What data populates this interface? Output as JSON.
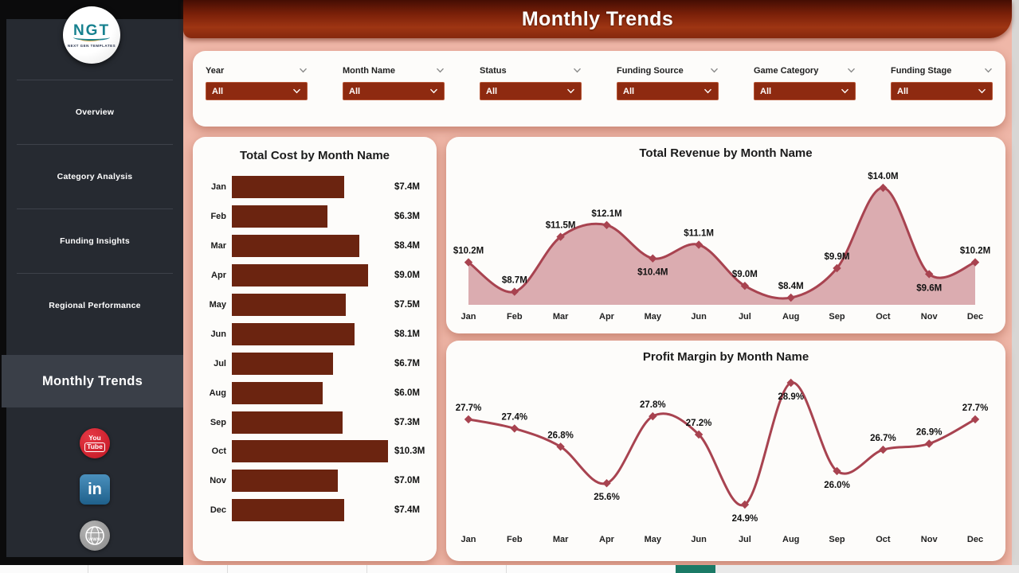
{
  "app": {
    "title": "Monthly Trends"
  },
  "sidebar": {
    "logo": {
      "text": "NGT",
      "subtext": "NEXT GEN TEMPLATES"
    },
    "items": [
      {
        "label": "Overview",
        "active": false
      },
      {
        "label": "Category Analysis",
        "active": false
      },
      {
        "label": "Funding Insights",
        "active": false
      },
      {
        "label": "Regional Performance",
        "active": false
      },
      {
        "label": "Monthly Trends",
        "active": true
      }
    ],
    "social": [
      "YouTube",
      "LinkedIn",
      "Website"
    ],
    "youtube_label_top": "You",
    "youtube_label_bottom": "Tube",
    "linkedin_label": "in",
    "website_label": "WWW"
  },
  "filters": [
    {
      "label": "Year",
      "value": "All"
    },
    {
      "label": "Month Name",
      "value": "All"
    },
    {
      "label": "Status",
      "value": "All"
    },
    {
      "label": "Funding Source",
      "value": "All"
    },
    {
      "label": "Game Category",
      "value": "All"
    },
    {
      "label": "Funding Stage",
      "value": "All"
    }
  ],
  "colors": {
    "header_red_dark": "#450d03",
    "header_red": "#9e3513",
    "page_background": "#efb7a8",
    "sidebar_background": "#262a31",
    "sidebar_active": "#3a3f48",
    "dropdown_red": "#8e2a10",
    "bar_color": "#6b2410",
    "line_color": "#a84350",
    "area_fill": "#dbacb0",
    "teal_tab": "#1b7a66",
    "youtube_red": "#c11622",
    "linkedin_blue": "#2d76a8"
  },
  "chart_data": [
    {
      "type": "bar",
      "orientation": "horizontal",
      "title": "Total Cost by Month Name",
      "categories": [
        "Jan",
        "Feb",
        "Mar",
        "Apr",
        "May",
        "Jun",
        "Jul",
        "Aug",
        "Sep",
        "Oct",
        "Nov",
        "Dec"
      ],
      "values": [
        7.4,
        6.3,
        8.4,
        9.0,
        7.5,
        8.1,
        6.7,
        6.0,
        7.3,
        10.3,
        7.0,
        7.4
      ],
      "labels": [
        "$7.4M",
        "$6.3M",
        "$8.4M",
        "$9.0M",
        "$7.5M",
        "$8.1M",
        "$6.7M",
        "$6.0M",
        "$7.3M",
        "$10.3M",
        "$7.0M",
        "$7.4M"
      ],
      "unit": "USD millions",
      "xlim": [
        0,
        10.3
      ],
      "grid": false,
      "legend": "none"
    },
    {
      "type": "area",
      "title": "Total Revenue by Month Name",
      "categories": [
        "Jan",
        "Feb",
        "Mar",
        "Apr",
        "May",
        "Jun",
        "Jul",
        "Aug",
        "Sep",
        "Oct",
        "Nov",
        "Dec"
      ],
      "values": [
        10.2,
        8.7,
        11.5,
        12.1,
        10.4,
        11.1,
        9.0,
        8.4,
        9.9,
        14.0,
        9.6,
        10.2
      ],
      "labels": [
        "$10.2M",
        "$8.7M",
        "$11.5M",
        "$12.1M",
        "$10.4M",
        "$11.1M",
        "$9.0M",
        "$8.4M",
        "$9.9M",
        "$14.0M",
        "$9.6M",
        "$10.2M"
      ],
      "label_pos": [
        "above",
        "above",
        "above",
        "above",
        "below",
        "above",
        "above",
        "above",
        "above",
        "above",
        "below",
        "above"
      ],
      "unit": "USD millions",
      "ylim": [
        8.0,
        14.8
      ],
      "grid": false,
      "legend": "none",
      "markers": "diamond"
    },
    {
      "type": "line",
      "title": "Profit Margin by Month Name",
      "categories": [
        "Jan",
        "Feb",
        "Mar",
        "Apr",
        "May",
        "Jun",
        "Jul",
        "Aug",
        "Sep",
        "Oct",
        "Nov",
        "Dec"
      ],
      "values": [
        27.7,
        27.4,
        26.8,
        25.6,
        27.8,
        27.2,
        24.9,
        28.9,
        26.0,
        26.7,
        26.9,
        27.7
      ],
      "labels": [
        "27.7%",
        "27.4%",
        "26.8%",
        "25.6%",
        "27.8%",
        "27.2%",
        "24.9%",
        "28.9%",
        "26.0%",
        "26.7%",
        "26.9%",
        "27.7%"
      ],
      "label_pos": [
        "above",
        "above",
        "above",
        "below",
        "above",
        "above",
        "below",
        "below",
        "below",
        "above",
        "above",
        "above"
      ],
      "unit": "percent",
      "ylim": [
        24.3,
        29.4
      ],
      "grid": false,
      "legend": "none",
      "markers": "diamond"
    }
  ]
}
